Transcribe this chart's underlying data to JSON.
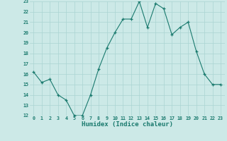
{
  "x": [
    0,
    1,
    2,
    3,
    4,
    5,
    6,
    7,
    8,
    9,
    10,
    11,
    12,
    13,
    14,
    15,
    16,
    17,
    18,
    19,
    20,
    21,
    22,
    23
  ],
  "y": [
    16.2,
    15.2,
    15.5,
    14.0,
    13.5,
    12.0,
    12.0,
    14.0,
    16.5,
    18.5,
    20.0,
    21.3,
    21.3,
    23.0,
    20.5,
    22.8,
    22.3,
    19.8,
    20.5,
    21.0,
    18.2,
    16.0,
    15.0,
    15.0
  ],
  "line_color": "#1a7a6e",
  "marker_color": "#1a7a6e",
  "bg_color": "#cce9e7",
  "grid_color": "#aad4d2",
  "xlabel": "Humidex (Indice chaleur)",
  "xlabel_color": "#1a7a6e",
  "tick_color": "#1a7a6e",
  "ylim": [
    12,
    23
  ],
  "xlim": [
    -0.5,
    23.5
  ],
  "yticks": [
    12,
    13,
    14,
    15,
    16,
    17,
    18,
    19,
    20,
    21,
    22,
    23
  ],
  "xticks": [
    0,
    1,
    2,
    3,
    4,
    5,
    6,
    7,
    8,
    9,
    10,
    11,
    12,
    13,
    14,
    15,
    16,
    17,
    18,
    19,
    20,
    21,
    22,
    23
  ],
  "xtick_labels": [
    "0",
    "1",
    "2",
    "3",
    "4",
    "5",
    "6",
    "7",
    "8",
    "9",
    "10",
    "11",
    "12",
    "13",
    "14",
    "15",
    "16",
    "17",
    "18",
    "19",
    "20",
    "21",
    "22",
    "23"
  ],
  "ytick_labels": [
    "12",
    "13",
    "14",
    "15",
    "16",
    "17",
    "18",
    "19",
    "20",
    "21",
    "22",
    "23"
  ]
}
